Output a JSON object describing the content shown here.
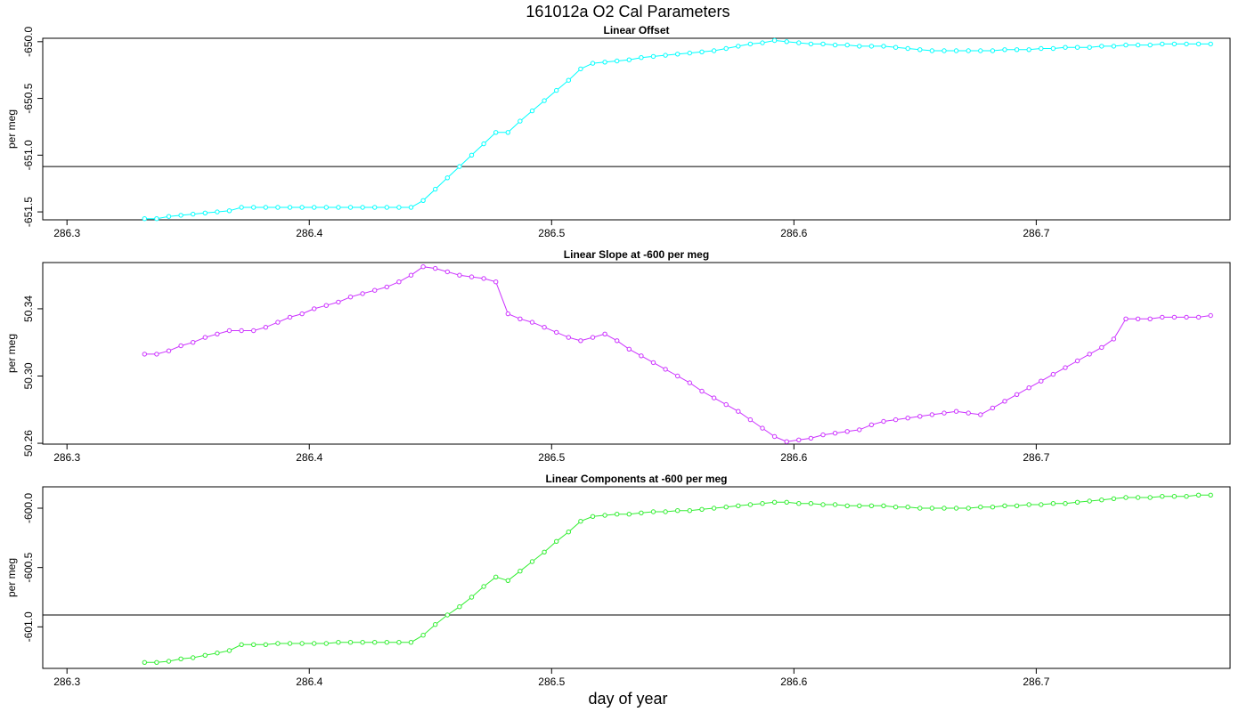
{
  "title": "161012a   O2 Cal Parameters",
  "xlabel": "day of year",
  "chart_data": [
    {
      "type": "line",
      "title": "Linear Offset",
      "ylabel": "per meg",
      "color": "#00ffff",
      "xlim": [
        286.29,
        286.78
      ],
      "ylim": [
        -651.57,
        -649.97
      ],
      "xticks": [
        "286.3",
        "286.4",
        "286.5",
        "286.6",
        "286.7"
      ],
      "yticks": [
        "-650.0",
        "-650.5",
        "-651.0",
        "-651.5"
      ],
      "hline": -651.1,
      "x": [
        286.332,
        286.337,
        286.342,
        286.347,
        286.352,
        286.357,
        286.362,
        286.367,
        286.372,
        286.377,
        286.382,
        286.387,
        286.392,
        286.397,
        286.402,
        286.407,
        286.412,
        286.417,
        286.422,
        286.427,
        286.432,
        286.437,
        286.442,
        286.447,
        286.452,
        286.457,
        286.462,
        286.467,
        286.472,
        286.477,
        286.482,
        286.487,
        286.492,
        286.497,
        286.502,
        286.507,
        286.512,
        286.517,
        286.522,
        286.527,
        286.532,
        286.537,
        286.542,
        286.547,
        286.552,
        286.557,
        286.562,
        286.567,
        286.572,
        286.577,
        286.582,
        286.587,
        286.592,
        286.597,
        286.602,
        286.607,
        286.612,
        286.617,
        286.622,
        286.627,
        286.632,
        286.637,
        286.642,
        286.647,
        286.652,
        286.657,
        286.662,
        286.667,
        286.672,
        286.677,
        286.682,
        286.687,
        286.692,
        286.697,
        286.702,
        286.707,
        286.712,
        286.717,
        286.722,
        286.727,
        286.732,
        286.737,
        286.742,
        286.747,
        286.752,
        286.757,
        286.762,
        286.767,
        286.772
      ],
      "values": [
        -651.56,
        -651.56,
        -651.54,
        -651.53,
        -651.52,
        -651.51,
        -651.5,
        -651.49,
        -651.46,
        -651.46,
        -651.46,
        -651.46,
        -651.46,
        -651.46,
        -651.46,
        -651.46,
        -651.46,
        -651.46,
        -651.46,
        -651.46,
        -651.46,
        -651.46,
        -651.46,
        -651.4,
        -651.3,
        -651.2,
        -651.1,
        -651.0,
        -650.9,
        -650.8,
        -650.8,
        -650.7,
        -650.61,
        -650.52,
        -650.43,
        -650.34,
        -650.24,
        -650.19,
        -650.18,
        -650.17,
        -650.16,
        -650.14,
        -650.13,
        -650.12,
        -650.11,
        -650.1,
        -650.09,
        -650.08,
        -650.06,
        -650.04,
        -650.02,
        -650.01,
        -649.99,
        -650.0,
        -650.01,
        -650.02,
        -650.02,
        -650.03,
        -650.03,
        -650.04,
        -650.04,
        -650.04,
        -650.05,
        -650.06,
        -650.07,
        -650.08,
        -650.08,
        -650.08,
        -650.08,
        -650.08,
        -650.08,
        -650.07,
        -650.07,
        -650.07,
        -650.06,
        -650.06,
        -650.05,
        -650.05,
        -650.05,
        -650.04,
        -650.04,
        -650.03,
        -650.03,
        -650.03,
        -650.02,
        -650.02,
        -650.02,
        -650.02,
        -650.02
      ]
    },
    {
      "type": "line",
      "title": "Linear Slope at -600 per meg",
      "ylabel": "per meg",
      "color": "#cc33ff",
      "xlim": [
        286.29,
        286.78
      ],
      "ylim": [
        50.2595,
        50.3675
      ],
      "xticks": [
        "286.3",
        "286.4",
        "286.5",
        "286.6",
        "286.7"
      ],
      "yticks": [
        "50.26",
        "50.30",
        "50.34"
      ],
      "hline": null,
      "x": [
        286.332,
        286.337,
        286.342,
        286.347,
        286.352,
        286.357,
        286.362,
        286.367,
        286.372,
        286.377,
        286.382,
        286.387,
        286.392,
        286.397,
        286.402,
        286.407,
        286.412,
        286.417,
        286.422,
        286.427,
        286.432,
        286.437,
        286.442,
        286.447,
        286.452,
        286.457,
        286.462,
        286.467,
        286.472,
        286.477,
        286.482,
        286.487,
        286.492,
        286.497,
        286.502,
        286.507,
        286.512,
        286.517,
        286.522,
        286.527,
        286.532,
        286.537,
        286.542,
        286.547,
        286.552,
        286.557,
        286.562,
        286.567,
        286.572,
        286.577,
        286.582,
        286.587,
        286.592,
        286.597,
        286.602,
        286.607,
        286.612,
        286.617,
        286.622,
        286.627,
        286.632,
        286.637,
        286.642,
        286.647,
        286.652,
        286.657,
        286.662,
        286.667,
        286.672,
        286.677,
        286.682,
        286.687,
        286.692,
        286.697,
        286.702,
        286.707,
        286.712,
        286.717,
        286.722,
        286.727,
        286.732,
        286.737,
        286.742,
        286.747,
        286.752,
        286.757,
        286.762,
        286.767,
        286.772
      ],
      "values": [
        50.313,
        50.313,
        50.315,
        50.318,
        50.32,
        50.323,
        50.325,
        50.327,
        50.327,
        50.327,
        50.329,
        50.332,
        50.335,
        50.337,
        50.34,
        50.342,
        50.344,
        50.347,
        50.349,
        50.351,
        50.353,
        50.356,
        50.36,
        50.365,
        50.364,
        50.362,
        50.36,
        50.359,
        50.358,
        50.356,
        50.337,
        50.334,
        50.332,
        50.329,
        50.326,
        50.323,
        50.321,
        50.323,
        50.325,
        50.321,
        50.316,
        50.312,
        50.308,
        50.304,
        50.3,
        50.296,
        50.291,
        50.287,
        50.283,
        50.279,
        50.274,
        50.269,
        50.264,
        50.261,
        50.262,
        50.263,
        50.265,
        50.266,
        50.267,
        50.268,
        50.271,
        50.273,
        50.274,
        50.275,
        50.276,
        50.277,
        50.278,
        50.279,
        50.278,
        50.277,
        50.281,
        50.285,
        50.289,
        50.293,
        50.297,
        50.301,
        50.305,
        50.309,
        50.313,
        50.317,
        50.322,
        50.334,
        50.334,
        50.334,
        50.335,
        50.335,
        50.335,
        50.335,
        50.336
      ]
    },
    {
      "type": "line",
      "title": "Linear Components at -600 per meg",
      "ylabel": "per meg",
      "color": "#33ee33",
      "xlim": [
        286.29,
        286.78
      ],
      "ylim": [
        -601.35,
        -599.82
      ],
      "xticks": [
        "286.3",
        "286.4",
        "286.5",
        "286.6",
        "286.7"
      ],
      "yticks": [
        "-600.0",
        "-600.5",
        "-601.0"
      ],
      "hline": -600.9,
      "x": [
        286.332,
        286.337,
        286.342,
        286.347,
        286.352,
        286.357,
        286.362,
        286.367,
        286.372,
        286.377,
        286.382,
        286.387,
        286.392,
        286.397,
        286.402,
        286.407,
        286.412,
        286.417,
        286.422,
        286.427,
        286.432,
        286.437,
        286.442,
        286.447,
        286.452,
        286.457,
        286.462,
        286.467,
        286.472,
        286.477,
        286.482,
        286.487,
        286.492,
        286.497,
        286.502,
        286.507,
        286.512,
        286.517,
        286.522,
        286.527,
        286.532,
        286.537,
        286.542,
        286.547,
        286.552,
        286.557,
        286.562,
        286.567,
        286.572,
        286.577,
        286.582,
        286.587,
        286.592,
        286.597,
        286.602,
        286.607,
        286.612,
        286.617,
        286.622,
        286.627,
        286.632,
        286.637,
        286.642,
        286.647,
        286.652,
        286.657,
        286.662,
        286.667,
        286.672,
        286.677,
        286.682,
        286.687,
        286.692,
        286.697,
        286.702,
        286.707,
        286.712,
        286.717,
        286.722,
        286.727,
        286.732,
        286.737,
        286.742,
        286.747,
        286.752,
        286.757,
        286.762,
        286.767,
        286.772
      ],
      "values": [
        -601.3,
        -601.3,
        -601.29,
        -601.27,
        -601.26,
        -601.24,
        -601.22,
        -601.2,
        -601.15,
        -601.15,
        -601.15,
        -601.14,
        -601.14,
        -601.14,
        -601.14,
        -601.14,
        -601.13,
        -601.13,
        -601.13,
        -601.13,
        -601.13,
        -601.13,
        -601.13,
        -601.07,
        -600.98,
        -600.9,
        -600.83,
        -600.75,
        -600.66,
        -600.58,
        -600.61,
        -600.53,
        -600.45,
        -600.37,
        -600.28,
        -600.2,
        -600.11,
        -600.07,
        -600.06,
        -600.05,
        -600.05,
        -600.04,
        -600.03,
        -600.03,
        -600.02,
        -600.02,
        -600.01,
        -600.0,
        -599.99,
        -599.98,
        -599.97,
        -599.96,
        -599.95,
        -599.95,
        -599.96,
        -599.96,
        -599.97,
        -599.97,
        -599.98,
        -599.98,
        -599.98,
        -599.98,
        -599.99,
        -599.99,
        -600.0,
        -600.0,
        -600.0,
        -600.0,
        -600.0,
        -599.99,
        -599.99,
        -599.98,
        -599.98,
        -599.97,
        -599.97,
        -599.96,
        -599.96,
        -599.95,
        -599.94,
        -599.93,
        -599.92,
        -599.91,
        -599.91,
        -599.91,
        -599.9,
        -599.9,
        -599.9,
        -599.89,
        -599.89
      ]
    }
  ]
}
